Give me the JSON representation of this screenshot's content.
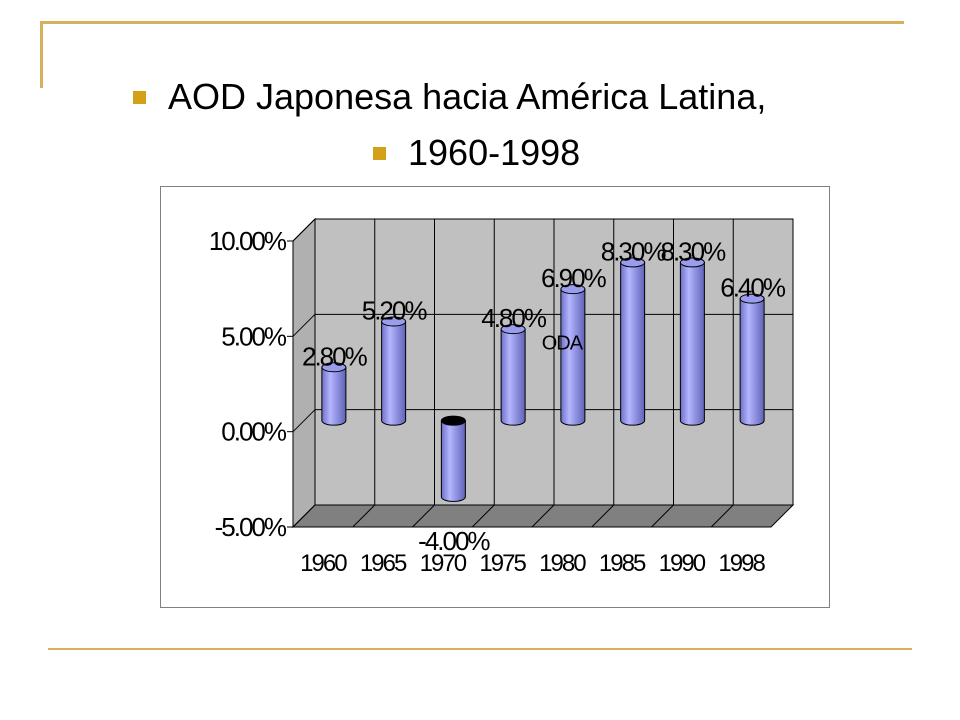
{
  "slide": {
    "title_line1": "AOD Japonesa hacia América Latina,",
    "title_line2": "1960-1998",
    "colors": {
      "accent": "#d4b15a",
      "bullet": "#d4a017",
      "bar": "#9a9cee"
    }
  },
  "chart_data": {
    "type": "bar",
    "style": "3d-cylinder",
    "categories": [
      "1960",
      "1965",
      "1970",
      "1975",
      "1980",
      "1985",
      "1990",
      "1998"
    ],
    "series": [
      {
        "name": "ODA",
        "values": [
          2.8,
          5.2,
          -4.0,
          4.8,
          6.9,
          8.3,
          8.3,
          6.4
        ]
      }
    ],
    "data_labels": [
      "2.80%",
      "5.20%",
      "-4.00%",
      "4.80%",
      "6.90%",
      "8.30%",
      "8.30%",
      "6.40%"
    ],
    "ylim": [
      -5,
      10
    ],
    "yticks": [
      10,
      5,
      0,
      -5
    ],
    "ytick_labels": [
      "10.00%",
      "5.00%",
      "0.00%",
      "-5.00%"
    ],
    "grid": true,
    "legend": "none",
    "title": "",
    "xlabel": "",
    "ylabel": ""
  }
}
